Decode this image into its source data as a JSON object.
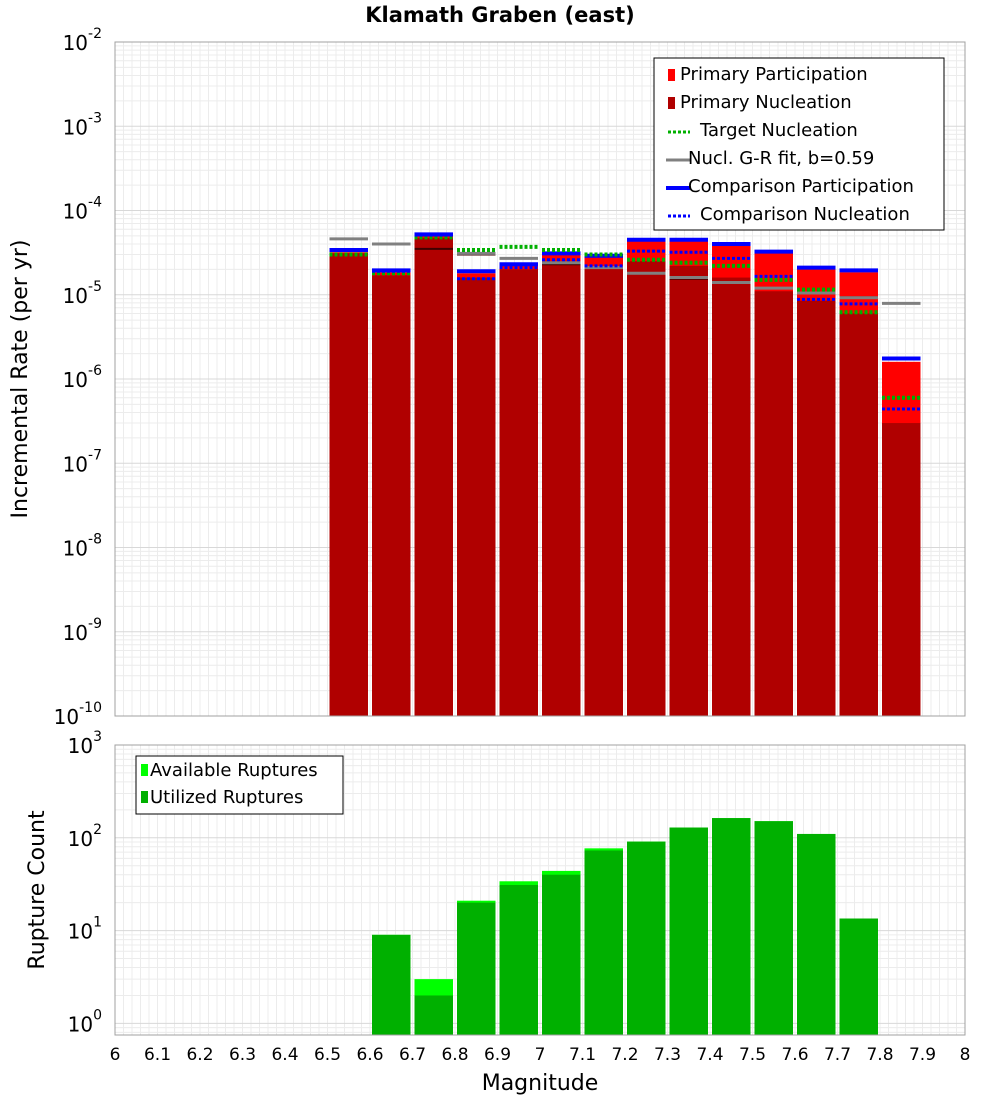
{
  "chart_data": [
    {
      "type": "bar",
      "title": "Klamath Graben (east)",
      "xlabel": "",
      "ylabel": "Incremental Rate (per yr)",
      "yscale": "log",
      "ylim": [
        1e-10,
        0.01
      ],
      "xlim": [
        6,
        8
      ],
      "bin_width": 0.1,
      "grid": true,
      "legend_position": "top-right",
      "y_tick_labels": [
        {
          "base": "10",
          "exp": "-2"
        },
        {
          "base": "10",
          "exp": "-3"
        },
        {
          "base": "10",
          "exp": "-4"
        },
        {
          "base": "10",
          "exp": "-5"
        },
        {
          "base": "10",
          "exp": "-6"
        },
        {
          "base": "10",
          "exp": "-7"
        },
        {
          "base": "10",
          "exp": "-8"
        },
        {
          "base": "10",
          "exp": "-9"
        },
        {
          "base": "10",
          "exp": "-10"
        }
      ],
      "colors": {
        "primary_participation": "#ff0000",
        "primary_nucleation": "#b00000",
        "target_nucleation": "#00b000",
        "gr_fit": "#808080",
        "comparison_participation": "#0000ff",
        "comparison_nucleation": "#0000ff",
        "subseismo": "#400000"
      },
      "legend": [
        {
          "label": "Primary Participation",
          "style": "box",
          "color": "#ff0000"
        },
        {
          "label": "Primary Nucleation",
          "style": "box",
          "color": "#b00000"
        },
        {
          "label": "Target Nucleation",
          "style": "dotted",
          "color": "#00b000"
        },
        {
          "label": "Nucl. G-R fit, b=0.59",
          "style": "solid",
          "color": "#808080"
        },
        {
          "label": "Comparison Participation",
          "style": "solid",
          "color": "#0000ff"
        },
        {
          "label": "Comparison Nucleation",
          "style": "dotted",
          "color": "#0000ff"
        }
      ],
      "x": [
        6.55,
        6.65,
        6.75,
        6.85,
        6.95,
        7.05,
        7.15,
        7.25,
        7.35,
        7.45,
        7.55,
        7.65,
        7.75,
        7.85
      ],
      "series": [
        {
          "name": "Primary Participation",
          "values": [
            3.2e-05,
            1.85e-05,
            5e-05,
            1.8e-05,
            2.2e-05,
            3e-05,
            2.8e-05,
            4.3e-05,
            4.3e-05,
            3.8e-05,
            3.1e-05,
            2e-05,
            1.85e-05,
            1.6e-06
          ]
        },
        {
          "name": "Primary Nucleation",
          "values": [
            3.1e-05,
            1.7e-05,
            4.7e-05,
            1.6e-05,
            2e-05,
            2.5e-05,
            2.1e-05,
            2.5e-05,
            2.2e-05,
            1.6e-05,
            1.1e-05,
            8.5e-06,
            6e-06,
            3e-07
          ]
        },
        {
          "name": "Target Nucleation",
          "values": [
            3e-05,
            1.8e-05,
            4.8e-05,
            3.4e-05,
            3.7e-05,
            3.4e-05,
            3e-05,
            2.6e-05,
            2.4e-05,
            2.2e-05,
            1.5e-05,
            1.15e-05,
            6.2e-06,
            6e-07
          ]
        },
        {
          "name": "Nucl. G-R fit, b=0.59",
          "values": [
            4.6e-05,
            4e-05,
            null,
            3.1e-05,
            2.7e-05,
            2.4e-05,
            2.1e-05,
            1.8e-05,
            1.6e-05,
            1.4e-05,
            1.2e-05,
            1.05e-05,
            9.2e-06,
            7.9e-06
          ]
        },
        {
          "name": "Comparison Participation",
          "values": [
            3.4e-05,
            1.95e-05,
            5.2e-05,
            1.9e-05,
            2.3e-05,
            3.1e-05,
            2.9e-05,
            4.5e-05,
            4.5e-05,
            4e-05,
            3.25e-05,
            2.1e-05,
            1.95e-05,
            1.75e-06
          ]
        },
        {
          "name": "Comparison Nucleation",
          "values": [
            null,
            1.9e-05,
            5.1e-05,
            1.55e-05,
            2.1e-05,
            2.6e-05,
            2.2e-05,
            3.3e-05,
            3.2e-05,
            2.7e-05,
            1.65e-05,
            8.8e-06,
            7.8e-06,
            4.4e-07
          ]
        },
        {
          "name": "",
          "values": [
            null,
            null,
            3.5e-05,
            3e-05,
            null,
            2.3e-05,
            null,
            1.8e-05,
            1.55e-05,
            1.4e-05,
            1.2e-05,
            1.05e-05,
            9.3e-06,
            null
          ]
        }
      ]
    },
    {
      "type": "bar",
      "title": "",
      "xlabel": "Magnitude",
      "ylabel": "Rupture Count",
      "yscale": "log",
      "ylim": [
        0.75,
        1000
      ],
      "xlim": [
        6,
        8
      ],
      "bin_width": 0.1,
      "grid": true,
      "legend_position": "top-left",
      "y_tick_labels": [
        {
          "base": "10",
          "exp": "3"
        },
        {
          "base": "10",
          "exp": "2"
        },
        {
          "base": "10",
          "exp": "1"
        },
        {
          "base": "10",
          "exp": "0"
        }
      ],
      "x_tick_labels": [
        "6",
        "6.1",
        "6.2",
        "6.3",
        "6.4",
        "6.5",
        "6.6",
        "6.7",
        "6.8",
        "6.9",
        "7",
        "7.1",
        "7.2",
        "7.3",
        "7.4",
        "7.5",
        "7.6",
        "7.7",
        "7.8",
        "7.9",
        "8"
      ],
      "colors": {
        "available": "#00ff00",
        "utilized": "#00b000"
      },
      "legend": [
        {
          "label": "Available Ruptures",
          "style": "box",
          "color": "#00ff00"
        },
        {
          "label": "Utilized Ruptures",
          "style": "box",
          "color": "#00b000"
        }
      ],
      "x": [
        6.65,
        6.75,
        6.85,
        6.95,
        7.05,
        7.15,
        7.25,
        7.35,
        7.45,
        7.55,
        7.65,
        7.75
      ],
      "series": [
        {
          "name": "Available Ruptures",
          "values": [
            9,
            3,
            21,
            34,
            44,
            77,
            91,
            129,
            163,
            151,
            110,
            13.5
          ]
        },
        {
          "name": "Utilized Ruptures",
          "values": [
            9,
            2,
            20,
            31,
            40,
            73,
            91,
            129,
            163,
            151,
            110,
            13.5
          ]
        }
      ]
    }
  ]
}
